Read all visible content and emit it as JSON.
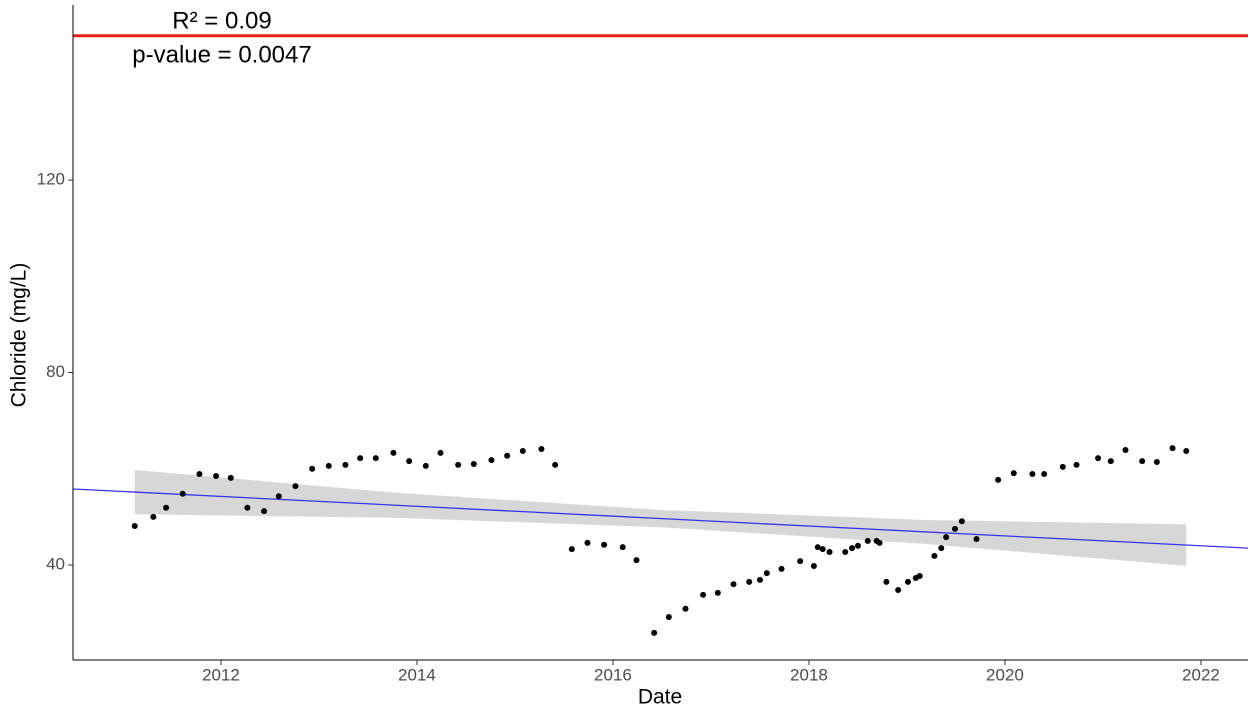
{
  "chart_data": {
    "type": "scatter",
    "x_label": "Date",
    "y_label": "Chloride (mg/L)",
    "annotations": [
      "R² = 0.09",
      "p-value = 0.0047"
    ],
    "point_color": "#000000",
    "x": [
      2011.12,
      2011.31,
      2011.44,
      2011.61,
      2011.78,
      2011.95,
      2012.1,
      2012.27,
      2012.44,
      2012.59,
      2012.76,
      2012.93,
      2013.1,
      2013.27,
      2013.42,
      2013.58,
      2013.76,
      2013.92,
      2014.09,
      2014.24,
      2014.42,
      2014.58,
      2014.76,
      2014.92,
      2015.08,
      2015.27,
      2015.41,
      2015.58,
      2015.74,
      2015.91,
      2016.1,
      2016.24,
      2016.42,
      2016.57,
      2016.74,
      2016.92,
      2017.07,
      2017.23,
      2017.39,
      2017.5,
      2017.57,
      2017.72,
      2017.91,
      2018.05,
      2018.09,
      2018.14,
      2018.21,
      2018.37,
      2018.44,
      2018.5,
      2018.6,
      2018.69,
      2018.72,
      2018.79,
      2018.91,
      2019.01,
      2019.09,
      2019.13,
      2019.28,
      2019.35,
      2019.4,
      2019.49,
      2019.56,
      2019.71,
      2019.93,
      2020.09,
      2020.28,
      2020.4,
      2020.59,
      2020.73,
      2020.95,
      2021.08,
      2021.23,
      2021.4,
      2021.55,
      2021.71,
      2021.85
    ],
    "values": [
      48.1,
      50.0,
      51.9,
      54.8,
      58.9,
      58.5,
      58.1,
      51.9,
      51.2,
      54.3,
      56.4,
      60.0,
      60.6,
      60.8,
      62.2,
      62.2,
      63.3,
      61.6,
      60.6,
      63.3,
      60.8,
      61.0,
      61.8,
      62.7,
      63.7,
      64.1,
      60.8,
      43.3,
      44.6,
      44.2,
      43.7,
      41.0,
      25.9,
      29.2,
      30.9,
      33.8,
      34.2,
      36.0,
      36.5,
      36.9,
      38.3,
      39.2,
      40.8,
      39.8,
      43.7,
      43.3,
      42.7,
      42.7,
      43.5,
      44.0,
      45.0,
      45.0,
      44.6,
      36.5,
      34.8,
      36.5,
      37.3,
      37.7,
      41.9,
      43.5,
      45.8,
      47.5,
      49.1,
      45.4,
      57.7,
      59.1,
      58.9,
      58.9,
      60.4,
      60.8,
      62.2,
      61.6,
      63.9,
      61.6,
      61.4,
      64.3,
      63.7
    ],
    "trend": {
      "x": [
        2010.49,
        2022.48
      ],
      "values": [
        55.8,
        43.5
      ],
      "color": "#3333ee"
    },
    "band": {
      "x": [
        2011.12,
        2013.8,
        2016.5,
        2019.2,
        2021.85
      ],
      "upper": [
        59.75,
        55.0,
        51.43,
        49.36,
        48.44
      ],
      "lower": [
        50.55,
        49.8,
        47.83,
        44.36,
        39.84
      ],
      "color": "#d3d3d3"
    },
    "reference_line": {
      "value": 150,
      "color": "#e8201c"
    },
    "xlim": [
      2010.49,
      2022.48
    ],
    "ylim": [
      20.25,
      156.4
    ],
    "xticks": [
      2012,
      2014,
      2016,
      2018,
      2020,
      2022
    ],
    "yticks": [
      40,
      80,
      120
    ],
    "grid": false
  }
}
